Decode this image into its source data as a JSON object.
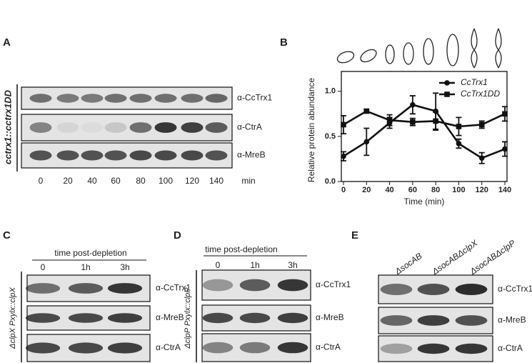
{
  "panels": [
    {
      "label": "A",
      "strain": "cctrx1::cctrx1DD",
      "lanes": [
        "0",
        "20",
        "40",
        "60",
        "80",
        "100",
        "120",
        "140"
      ],
      "lane_unit": "min",
      "blots": [
        "α-CcTrx1",
        "α-CtrA",
        "α-MreB"
      ]
    },
    {
      "label": "C",
      "strain": "ΔclpX Pxylx::clpX",
      "header": "time post-depletion",
      "lanes": [
        "0",
        "1h",
        "3h"
      ],
      "blots": [
        "α-CcTrx1",
        "α-MreB",
        "α-CtrA"
      ]
    },
    {
      "label": "D",
      "strain": "ΔclpP Pxylx::clpP",
      "header": "time post-depletion",
      "lanes": [
        "0",
        "1h",
        "3h"
      ],
      "blots": [
        "α-CcTrx1",
        "α-MreB",
        "α-CtrA"
      ]
    },
    {
      "label": "E",
      "lanes": [
        "ΔsocAB",
        "ΔsocABΔclpX",
        "ΔsocABΔclpP"
      ],
      "blots": [
        "α-CcTrx1",
        "α-MreB",
        "α-CtrA"
      ]
    }
  ],
  "chart_data": {
    "type": "line",
    "panel_label": "B",
    "x_label": "Time (min)",
    "y_label": "Relative protein abundance",
    "x": [
      0,
      20,
      40,
      60,
      80,
      100,
      120,
      140
    ],
    "series": [
      {
        "name": "CcTrx1",
        "color": "#111111",
        "marker": "circle",
        "values": [
          0.28,
          0.44,
          0.65,
          0.85,
          0.78,
          0.42,
          0.26,
          0.36
        ],
        "errors": [
          0.05,
          0.15,
          0.06,
          0.1,
          0.2,
          0.05,
          0.06,
          0.08
        ]
      },
      {
        "name": "CcTrx1DD",
        "color": "#111111",
        "marker": "square",
        "values": [
          0.63,
          0.78,
          0.68,
          0.66,
          0.67,
          0.61,
          0.63,
          0.75
        ],
        "errors": [
          0.1,
          0.02,
          0.06,
          0.04,
          0.1,
          0.1,
          0.04,
          0.08
        ]
      }
    ],
    "xlim": [
      0,
      140
    ],
    "ylim": [
      0,
      1.22
    ],
    "xticks": [
      0,
      20,
      40,
      60,
      80,
      100,
      120,
      140
    ],
    "yticks": [
      {
        "value": 0,
        "label": "0.0"
      },
      0.5,
      {
        "value": 1,
        "label": "1.0"
      }
    ],
    "legend": "upper right"
  }
}
